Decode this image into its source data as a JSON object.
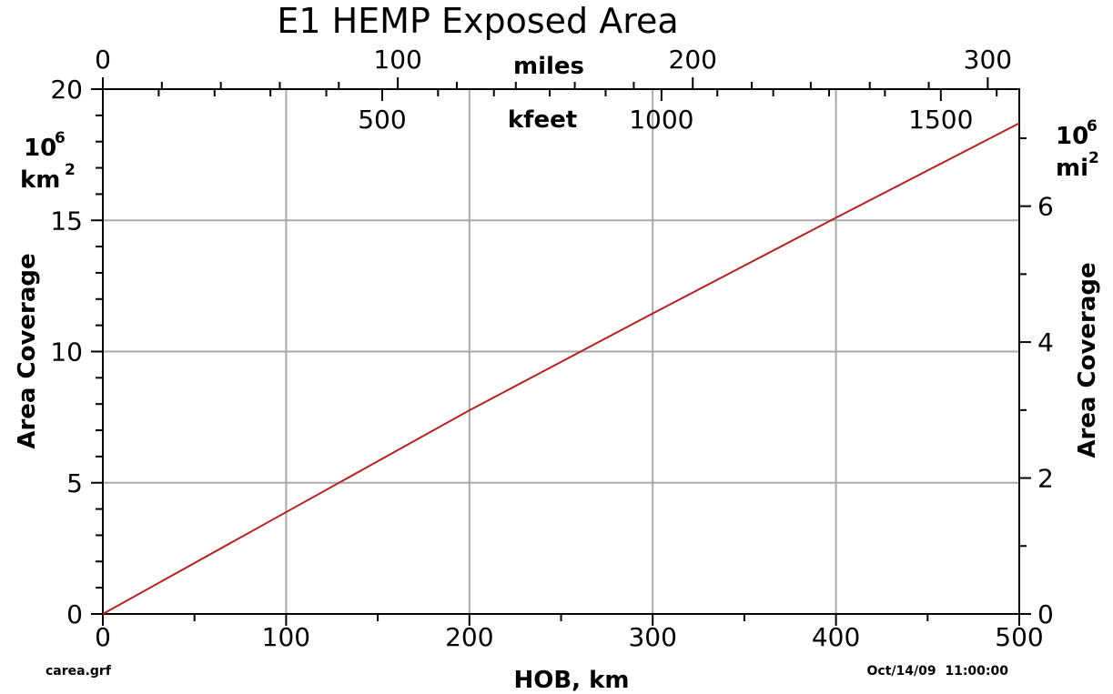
{
  "chart_data": {
    "type": "line",
    "title": "E1 HEMP Exposed Area",
    "xlabel": "HOB, km",
    "ylabel": "Area Coverage",
    "ylabel_right": "Area Coverage",
    "xlim": [
      0,
      500
    ],
    "ylim": [
      0,
      20
    ],
    "y2lim": [
      0,
      7.722
    ],
    "x_ticks": [
      "0",
      "100",
      "200",
      "300",
      "400",
      "500"
    ],
    "y_ticks": [
      "0",
      "5",
      "10",
      "15",
      "20"
    ],
    "y2_ticks": [
      "0",
      "2",
      "4",
      "6"
    ],
    "top_axis_miles": {
      "label": "miles",
      "ticks": [
        "0",
        "100",
        "200",
        "300"
      ]
    },
    "top_axis_kfeet": {
      "label": "kfeet",
      "ticks": [
        "500",
        "1000",
        "1500"
      ]
    },
    "left_unit": {
      "base": "10",
      "exp": "6",
      "unit": "km",
      "unit_exp": "2"
    },
    "right_unit": {
      "base": "10",
      "exp": "6",
      "unit": "mi",
      "unit_exp": "2"
    },
    "grid": true,
    "series": [
      {
        "color": "#b22222",
        "x": [
          0,
          100,
          200,
          300,
          400,
          500
        ],
        "y": [
          0,
          3.88,
          7.76,
          11.45,
          15.1,
          18.7
        ]
      }
    ],
    "footer_left": "carea.grf",
    "footer_right": "Oct/14/09  11:00:00"
  }
}
